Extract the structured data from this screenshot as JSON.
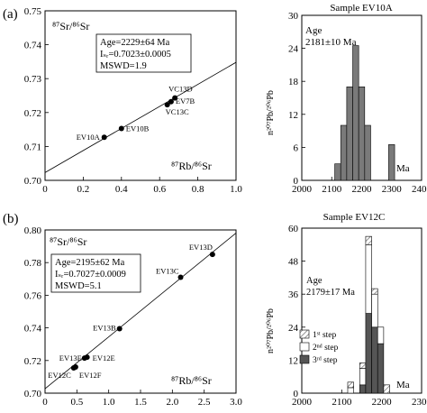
{
  "chart_data": [
    {
      "panel_label": "(a)",
      "type": "scatter",
      "y_label": "⁸⁷Sr/⁸⁶Sr",
      "x_label": "⁸⁷Rb/⁸⁶Sr",
      "xlim": [
        0,
        1.0
      ],
      "ylim": [
        0.7,
        0.75
      ],
      "x_ticks": [
        "0",
        "0.2",
        "0.4",
        "0.6",
        "0.8",
        "1.0"
      ],
      "y_ticks": [
        "0.70",
        "0.71",
        "0.72",
        "0.73",
        "0.74",
        "0.75"
      ],
      "annotation": [
        "Age=2229±64 Ma",
        "Iₛᵣ=0.7023±0.0005",
        "MSWD=1.9"
      ],
      "points": [
        {
          "label": "EV10A",
          "x": 0.31,
          "y": 0.7127
        },
        {
          "label": "EV10B",
          "x": 0.4,
          "y": 0.7153
        },
        {
          "label": "VC13C",
          "x": 0.64,
          "y": 0.7223
        },
        {
          "label": "EV7B",
          "x": 0.66,
          "y": 0.7232
        },
        {
          "label": "VC13D",
          "x": 0.68,
          "y": 0.7243
        }
      ],
      "isochron": {
        "intercept": 0.7023,
        "slope": 0.0325
      }
    },
    {
      "panel_label": "",
      "type": "bar",
      "title": "Sample EV10A",
      "y_label": "n²⁰⁷Pb/²⁰⁶Pb",
      "x_label": "Ma",
      "xlim": [
        2000,
        2400
      ],
      "ylim": [
        0,
        30
      ],
      "x_ticks": [
        "2000",
        "2100",
        "2200",
        "2300",
        "2400"
      ],
      "y_ticks": [
        "0",
        "6",
        "12",
        "18",
        "24",
        "30"
      ],
      "annotation": [
        "Age",
        "2181±10 Ma"
      ],
      "bin_width": 20,
      "bins": [
        {
          "start": 2110,
          "count": 3
        },
        {
          "start": 2130,
          "count": 10
        },
        {
          "start": 2150,
          "count": 17
        },
        {
          "start": 2170,
          "count": 24.5
        },
        {
          "start": 2190,
          "count": 17
        },
        {
          "start": 2210,
          "count": 10
        },
        {
          "start": 2230,
          "count": 0
        },
        {
          "start": 2250,
          "count": 0
        },
        {
          "start": 2270,
          "count": 0
        },
        {
          "start": 2290,
          "count": 6.5
        }
      ]
    },
    {
      "panel_label": "(b)",
      "type": "scatter",
      "y_label": "⁸⁷Sr/⁸⁶Sr",
      "x_label": "⁸⁷Rb/⁸⁶Sr",
      "xlim": [
        0,
        3.0
      ],
      "ylim": [
        0.7,
        0.8
      ],
      "x_ticks": [
        "0",
        "0.5",
        "1.0",
        "1.5",
        "2.0",
        "2.5",
        "3.0"
      ],
      "y_ticks": [
        "0.70",
        "0.72",
        "0.74",
        "0.76",
        "0.78",
        "0.80"
      ],
      "annotation": [
        "Age=2195±62 Ma",
        "Iₛᵣ=0.7027±0.0009",
        "MSWD=5.1"
      ],
      "points": [
        {
          "label": "EV12C",
          "x": 0.45,
          "y": 0.7155
        },
        {
          "label": "EV12F",
          "x": 0.48,
          "y": 0.716
        },
        {
          "label": "EV13E",
          "x": 0.62,
          "y": 0.7215
        },
        {
          "label": "EV12E",
          "x": 0.66,
          "y": 0.722
        },
        {
          "label": "EV13B",
          "x": 1.17,
          "y": 0.7395
        },
        {
          "label": "EV13C",
          "x": 2.13,
          "y": 0.771
        },
        {
          "label": "EV13D",
          "x": 2.63,
          "y": 0.785
        }
      ],
      "isochron": {
        "intercept": 0.7027,
        "slope": 0.0318
      }
    },
    {
      "panel_label": "",
      "type": "bar",
      "title": "Sample EV12C",
      "y_label": "n²⁰⁷Pb/²⁰⁶Pb",
      "x_label": "Ma",
      "xlim": [
        2000,
        2300
      ],
      "ylim": [
        0,
        60
      ],
      "x_ticks": [
        "2000",
        "2100",
        "2200",
        "2300"
      ],
      "y_ticks": [
        "0",
        "12",
        "24",
        "36",
        "48",
        "60"
      ],
      "annotation": [
        "Age",
        "2179±17 Ma"
      ],
      "legend": [
        "1ˢᵗ step",
        "2ⁿᵈ step",
        "3ʳᵈ step"
      ],
      "bin_width": 15,
      "bins": [
        {
          "start": 2115,
          "third": 0,
          "second": 2,
          "first": 2
        },
        {
          "start": 2130,
          "third": 0,
          "second": 0,
          "first": 0
        },
        {
          "start": 2145,
          "third": 3,
          "second": 6,
          "first": 2
        },
        {
          "start": 2160,
          "third": 29,
          "second": 25,
          "first": 3
        },
        {
          "start": 2175,
          "third": 24,
          "second": 12,
          "first": 2
        },
        {
          "start": 2190,
          "third": 18,
          "second": 6,
          "first": 0
        },
        {
          "start": 2205,
          "third": 0,
          "second": 0,
          "first": 3
        }
      ]
    }
  ]
}
